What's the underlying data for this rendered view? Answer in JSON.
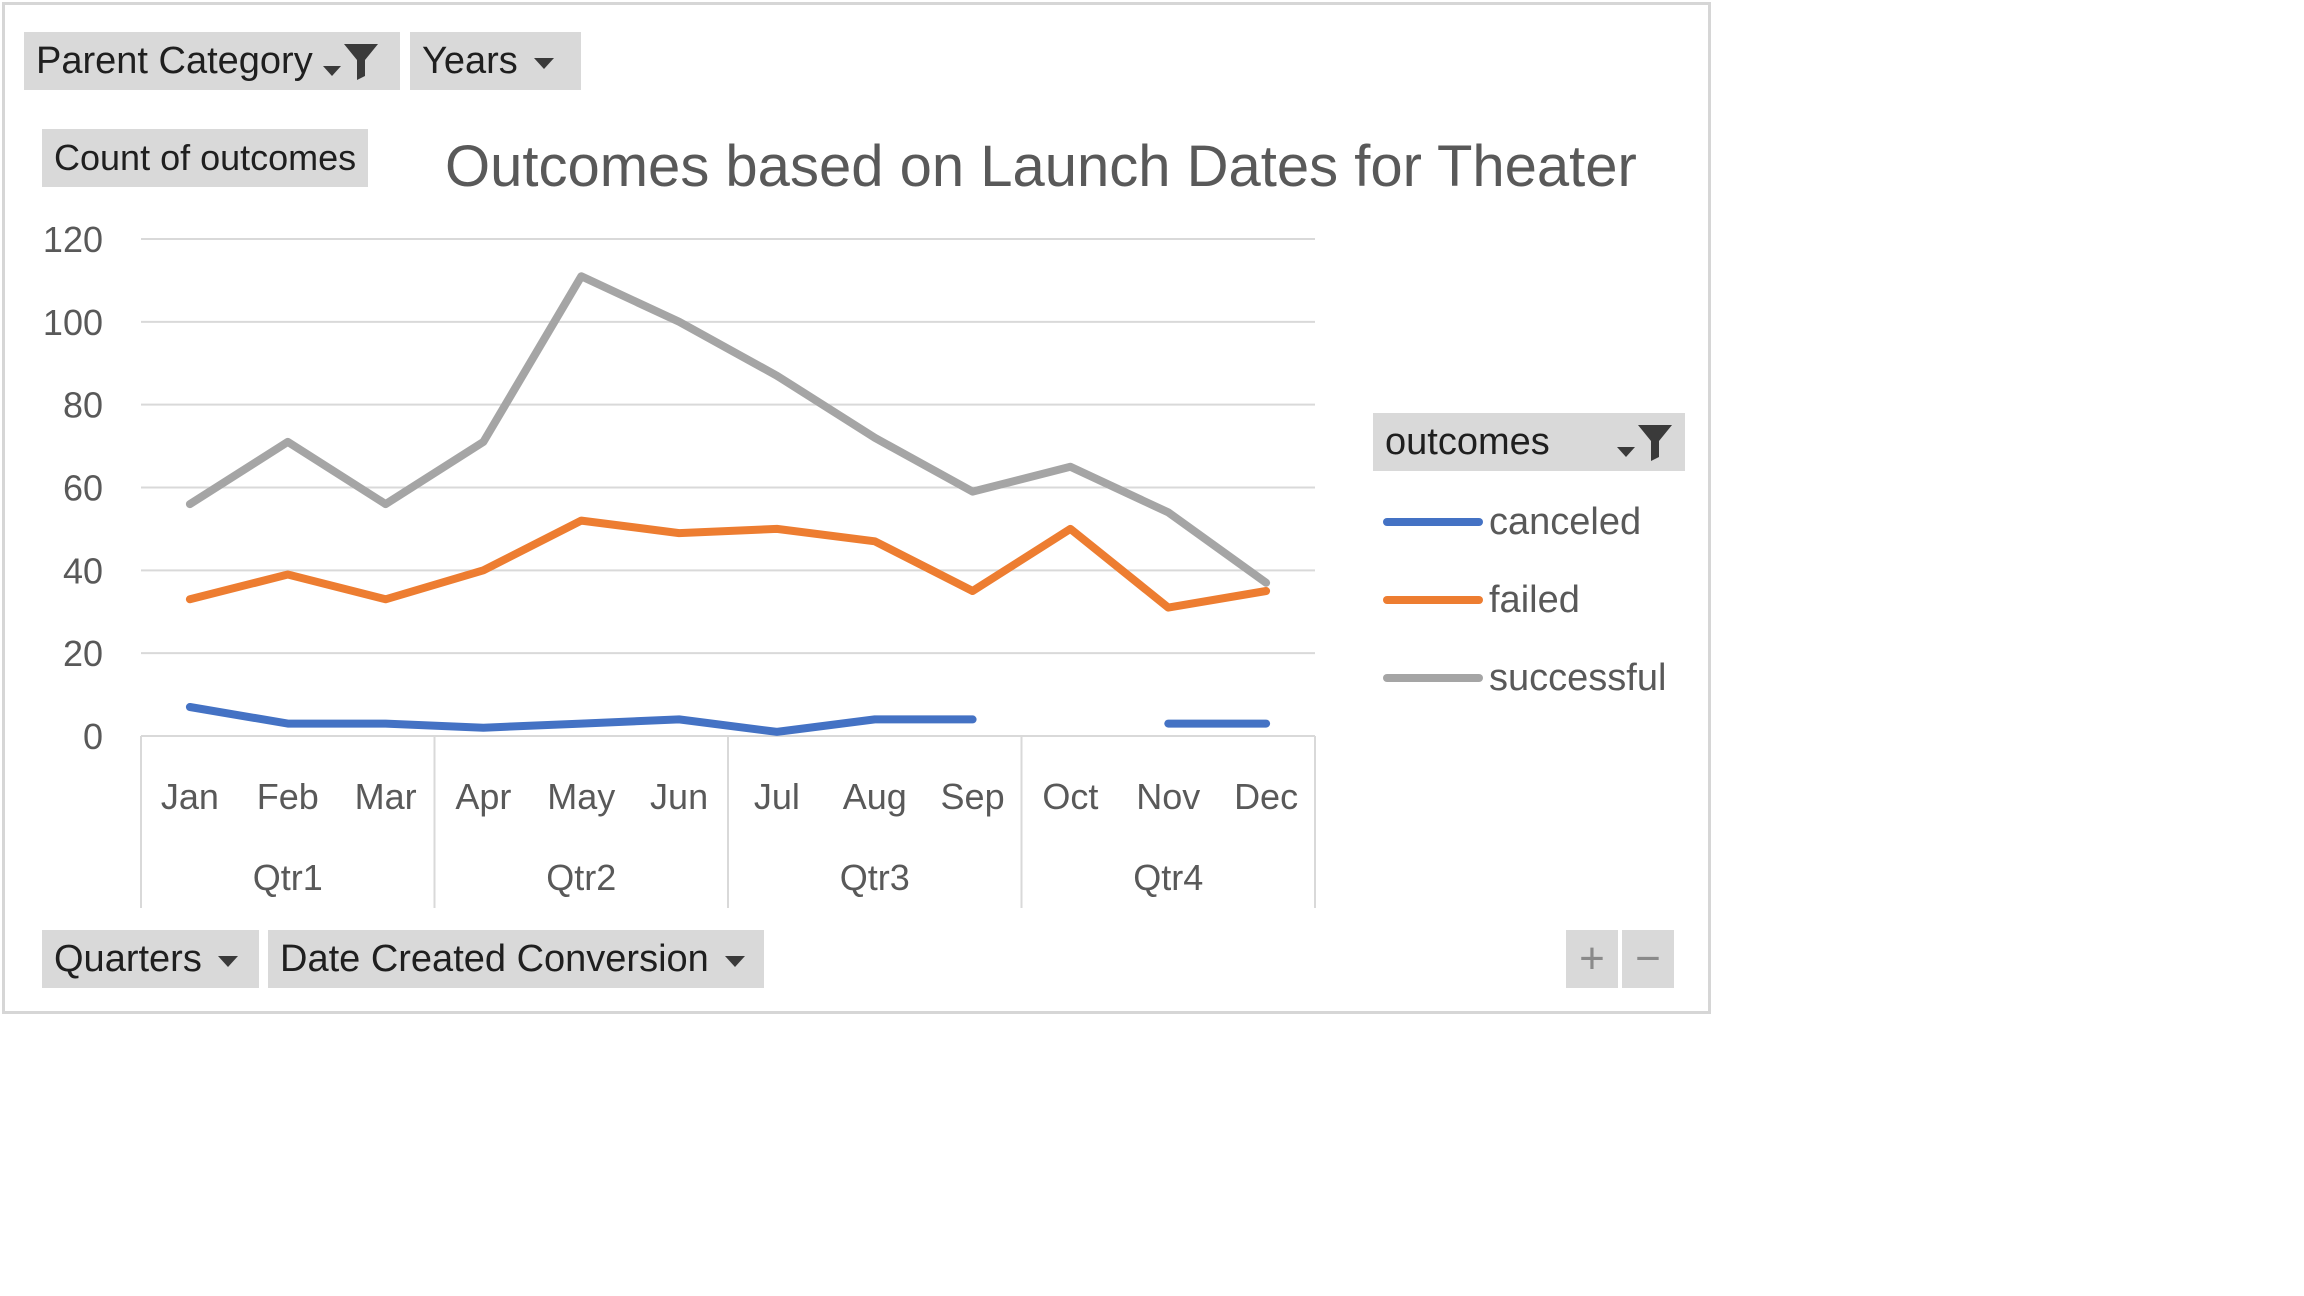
{
  "filters": {
    "parent_category": "Parent Category",
    "years": "Years"
  },
  "value_field": "Count of outcomes",
  "axis_fields": {
    "quarters": "Quarters",
    "date_created": "Date Created Conversion"
  },
  "zoom": {
    "plus": "+",
    "minus": "−"
  },
  "colors": {
    "canceled": "#4472c4",
    "failed": "#ed7d31",
    "successful": "#a5a5a5",
    "grid": "#d9d9d9",
    "axis_text": "#595959"
  },
  "chart_data": {
    "type": "line",
    "title": "Outcomes based on Launch Dates for Theater",
    "xlabel": "",
    "ylabel": "",
    "ylim": [
      0,
      120
    ],
    "yticks": [
      0,
      20,
      40,
      60,
      80,
      100,
      120
    ],
    "grid": true,
    "legend_position": "right",
    "legend_title": "outcomes",
    "categories": [
      "Jan",
      "Feb",
      "Mar",
      "Apr",
      "May",
      "Jun",
      "Jul",
      "Aug",
      "Sep",
      "Oct",
      "Nov",
      "Dec"
    ],
    "groups": [
      {
        "label": "Qtr1",
        "months": [
          "Jan",
          "Feb",
          "Mar"
        ]
      },
      {
        "label": "Qtr2",
        "months": [
          "Apr",
          "May",
          "Jun"
        ]
      },
      {
        "label": "Qtr3",
        "months": [
          "Jul",
          "Aug",
          "Sep"
        ]
      },
      {
        "label": "Qtr4",
        "months": [
          "Oct",
          "Nov",
          "Dec"
        ]
      }
    ],
    "series": [
      {
        "name": "canceled",
        "values": [
          7,
          3,
          3,
          2,
          3,
          4,
          1,
          4,
          4,
          null,
          3,
          3
        ]
      },
      {
        "name": "failed",
        "values": [
          33,
          39,
          33,
          40,
          52,
          49,
          50,
          47,
          35,
          50,
          31,
          35
        ]
      },
      {
        "name": "successful",
        "values": [
          56,
          71,
          56,
          71,
          111,
          100,
          87,
          72,
          59,
          65,
          54,
          37
        ]
      }
    ]
  }
}
